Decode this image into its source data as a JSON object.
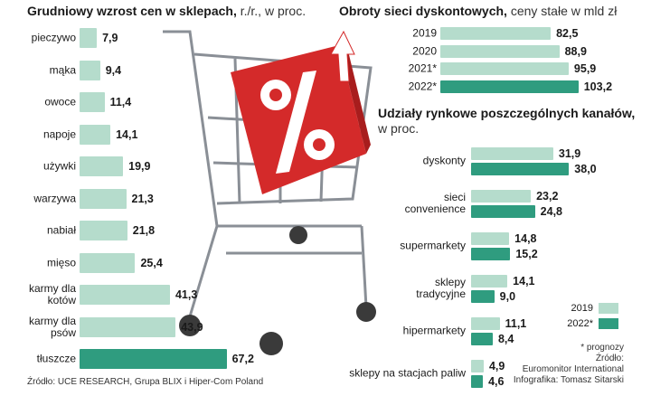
{
  "chart_data": [
    {
      "type": "hbar",
      "title": "Grudniowy wzrost cen w sklepach,",
      "subtitle": "r./r., w proc.",
      "categories": [
        "pieczywo",
        "mąka",
        "owoce",
        "napoje",
        "używki",
        "warzywa",
        "nabiał",
        "mięso",
        "karmy dla kotów",
        "karmy dla psów",
        "tłuszcze"
      ],
      "values": [
        7.9,
        9.4,
        11.4,
        14.1,
        19.9,
        21.3,
        21.8,
        25.4,
        41.3,
        43.9,
        67.2
      ],
      "value_labels": [
        "7,9",
        "9,4",
        "11,4",
        "14,1",
        "19,9",
        "21,3",
        "21,8",
        "25,4",
        "41,3",
        "43,9",
        "67,2"
      ],
      "colors": [
        "#b5dccc",
        "#b5dccc",
        "#b5dccc",
        "#b5dccc",
        "#b5dccc",
        "#b5dccc",
        "#b5dccc",
        "#b5dccc",
        "#b5dccc",
        "#b5dccc",
        "#2f9c7f"
      ],
      "source": "Źródło: UCE RESEARCH, Grupa BLIX i Hiper-Com Poland"
    },
    {
      "type": "hbar",
      "title": "Obroty sieci dyskontowych,",
      "subtitle": "ceny stałe w mld zł",
      "categories": [
        "2019",
        "2020",
        "2021*",
        "2022*"
      ],
      "values": [
        82.5,
        88.9,
        95.9,
        103.2
      ],
      "value_labels": [
        "82,5",
        "88,9",
        "95,9",
        "103,2"
      ],
      "colors": [
        "#b5dccc",
        "#b5dccc",
        "#b5dccc",
        "#2f9c7f"
      ]
    },
    {
      "type": "grouped-hbar",
      "title": "Udziały rynkowe poszczególnych kanałów,",
      "subtitle": "w proc.",
      "categories": [
        "dyskonty",
        "sieci convenience",
        "supermarkety",
        "sklepy tradycyjne",
        "hipermarkety",
        "sklepy na stacjach paliw"
      ],
      "series": [
        {
          "name": "2019",
          "color": "#b5dccc",
          "values": [
            31.9,
            23.2,
            14.8,
            14.1,
            11.1,
            4.9
          ],
          "value_labels": [
            "31,9",
            "23,2",
            "14,8",
            "14,1",
            "11,1",
            "4,9"
          ]
        },
        {
          "name": "2022*",
          "color": "#2f9c7f",
          "values": [
            38.0,
            24.8,
            15.2,
            9.0,
            8.4,
            4.6
          ],
          "value_labels": [
            "38,0",
            "24,8",
            "15,2",
            "9,0",
            "8,4",
            "4,6"
          ]
        }
      ],
      "legend": "lower right",
      "notes": [
        "* prognozy",
        "Źródło:",
        "Euromonitor International",
        "Infografika: Tomasz Sitarski"
      ]
    }
  ]
}
